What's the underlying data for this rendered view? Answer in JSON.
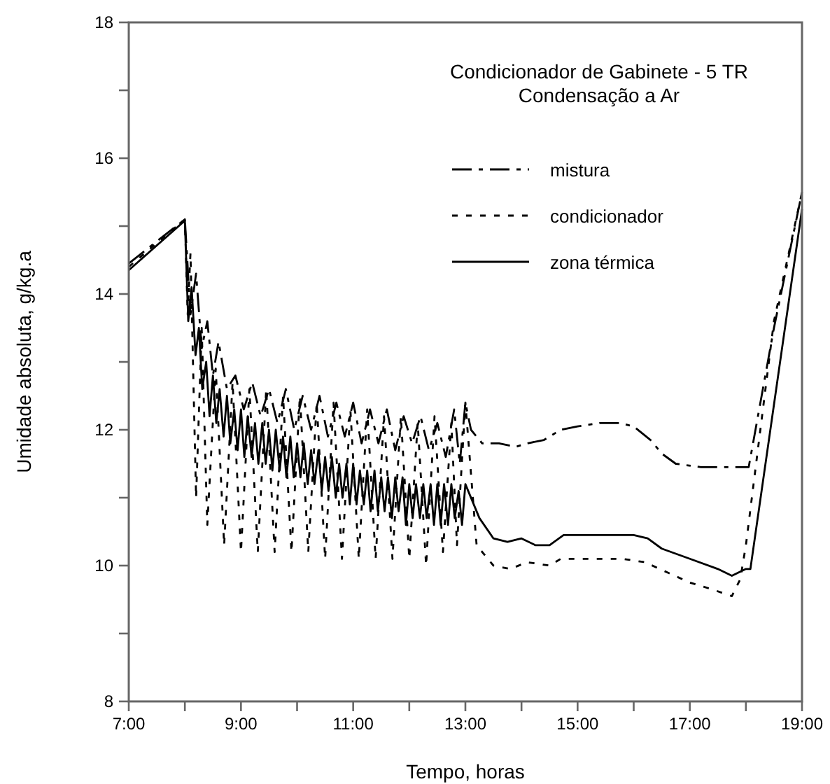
{
  "chart_data": {
    "type": "line",
    "title": "Condicionador de Gabinete - 5 TR",
    "subtitle": "Condensação a Ar",
    "xlabel": "Tempo, horas",
    "ylabel": "Umidade absoluta, g/kg.a",
    "xlim": [
      7,
      19
    ],
    "xticks": [
      {
        "value": 7,
        "label": "7:00"
      },
      {
        "value": 8,
        "label": null
      },
      {
        "value": 9,
        "label": "9:00"
      },
      {
        "value": 10,
        "label": null
      },
      {
        "value": 11,
        "label": "11:00"
      },
      {
        "value": 12,
        "label": null
      },
      {
        "value": 13,
        "label": "13:00"
      },
      {
        "value": 14,
        "label": null
      },
      {
        "value": 15,
        "label": "15:00"
      },
      {
        "value": 16,
        "label": null
      },
      {
        "value": 17,
        "label": "17:00"
      },
      {
        "value": 18,
        "label": null
      },
      {
        "value": 19,
        "label": "19:00"
      }
    ],
    "ylim": [
      8,
      18
    ],
    "yticks": [
      8,
      {
        "value": 9,
        "label": null
      },
      10,
      {
        "value": 11,
        "label": null
      },
      12,
      {
        "value": 13,
        "label": null
      },
      14,
      {
        "value": 15,
        "label": null
      },
      16,
      {
        "value": 17,
        "label": null
      },
      18
    ],
    "grid": false,
    "legend": "top right",
    "series": [
      {
        "name": "mistura",
        "color": "#000000",
        "line_style": "dashed",
        "x": [
          7,
          8,
          8.1,
          8.2,
          8.3,
          8.4,
          8.5,
          8.6,
          8.75,
          8.9,
          9.05,
          9.2,
          9.35,
          9.5,
          9.65,
          9.8,
          9.95,
          10.1,
          10.25,
          10.4,
          10.55,
          10.7,
          10.85,
          11,
          11.15,
          11.3,
          11.45,
          11.6,
          11.75,
          11.9,
          12.05,
          12.2,
          12.35,
          12.5,
          12.65,
          12.8,
          12.9,
          13,
          13.1,
          13.3,
          13.6,
          13.9,
          14.1,
          14.4,
          14.7,
          15,
          15.4,
          15.75,
          16,
          16.3,
          16.5,
          16.75,
          17.2,
          17.8,
          18.05,
          18.5,
          19
        ],
        "values": [
          14.45,
          15.1,
          13.7,
          14.3,
          13.2,
          13.6,
          12.8,
          13.3,
          12.6,
          12.8,
          12.3,
          12.7,
          12.2,
          12.6,
          12.1,
          12.6,
          12,
          12.5,
          12,
          12.5,
          11.9,
          12.4,
          11.9,
          12.4,
          11.8,
          12.3,
          11.8,
          12.3,
          11.7,
          12.2,
          11.8,
          12.2,
          11.7,
          12.1,
          11.6,
          12.3,
          11.5,
          12.4,
          12,
          11.8,
          11.8,
          11.75,
          11.8,
          11.85,
          12,
          12.05,
          12.1,
          12.1,
          12.05,
          11.85,
          11.65,
          11.5,
          11.45,
          11.45,
          11.45,
          13.5,
          15.5
        ]
      },
      {
        "name": "condicionador",
        "color": "#000000",
        "line_style": "dotted",
        "x": [
          7,
          8,
          8.05,
          8.1,
          8.2,
          8.3,
          8.4,
          8.55,
          8.7,
          8.85,
          9,
          9.15,
          9.3,
          9.45,
          9.6,
          9.75,
          9.9,
          10.05,
          10.2,
          10.35,
          10.5,
          10.65,
          10.8,
          10.95,
          11.1,
          11.25,
          11.4,
          11.55,
          11.7,
          11.85,
          12,
          12.15,
          12.3,
          12.45,
          12.6,
          12.75,
          12.85,
          13,
          13.2,
          13.5,
          13.8,
          14.1,
          14.5,
          14.7,
          15.2,
          15.8,
          16.2,
          16.6,
          17,
          17.4,
          17.75,
          17.9,
          18,
          18.5,
          19
        ],
        "values": [
          14.4,
          15.1,
          13.7,
          14.6,
          11,
          13.5,
          10.6,
          12.9,
          10.3,
          12.7,
          10.2,
          12.6,
          10.2,
          12.6,
          10.2,
          12.5,
          10.2,
          12.5,
          10.2,
          12.4,
          10.1,
          12.4,
          10.1,
          12.3,
          10.1,
          12.3,
          10.1,
          12.2,
          10.1,
          12.2,
          10.1,
          12.1,
          10,
          12.2,
          10.2,
          12.1,
          10.3,
          12.4,
          10.3,
          10,
          9.95,
          10.05,
          10,
          10.1,
          10.1,
          10.1,
          10.05,
          9.9,
          9.75,
          9.65,
          9.55,
          9.8,
          10.3,
          13.6,
          15.5
        ]
      },
      {
        "name": "zona térmica",
        "color": "#000000",
        "line_style": "solid",
        "x": [
          7,
          8,
          8.06,
          8.12,
          8.19,
          8.25,
          8.31,
          8.38,
          8.44,
          8.5,
          8.56,
          8.62,
          8.69,
          8.75,
          8.81,
          8.88,
          8.94,
          9,
          9.06,
          9.12,
          9.19,
          9.25,
          9.31,
          9.38,
          9.44,
          9.5,
          9.56,
          9.62,
          9.69,
          9.75,
          9.81,
          9.88,
          9.94,
          10,
          10.06,
          10.12,
          10.19,
          10.25,
          10.31,
          10.38,
          10.44,
          10.5,
          10.56,
          10.62,
          10.69,
          10.75,
          10.81,
          10.88,
          10.94,
          11,
          11.06,
          11.12,
          11.19,
          11.25,
          11.31,
          11.38,
          11.44,
          11.5,
          11.56,
          11.62,
          11.69,
          11.75,
          11.81,
          11.88,
          11.94,
          12,
          12.06,
          12.12,
          12.19,
          12.25,
          12.31,
          12.38,
          12.44,
          12.5,
          12.56,
          12.62,
          12.69,
          12.75,
          12.81,
          12.88,
          12.94,
          13,
          13.25,
          13.5,
          13.75,
          14,
          14.25,
          14.5,
          14.75,
          15,
          15.5,
          16,
          16.25,
          16.5,
          17,
          17.5,
          17.75,
          18,
          18.08,
          19
        ],
        "values": [
          14.35,
          15.08,
          13.6,
          14.1,
          13.1,
          13.5,
          12.6,
          13,
          12.2,
          12.8,
          12.1,
          12.6,
          11.9,
          12.5,
          11.8,
          12.3,
          11.7,
          12.3,
          11.6,
          12.2,
          11.6,
          12.1,
          11.5,
          12.1,
          11.5,
          12,
          11.4,
          12,
          11.4,
          11.9,
          11.3,
          11.9,
          11.3,
          11.8,
          11.3,
          11.8,
          11.2,
          11.7,
          11.2,
          11.7,
          11.1,
          11.6,
          11.1,
          11.6,
          11,
          11.5,
          11,
          11.5,
          10.9,
          11.5,
          10.9,
          11.4,
          10.9,
          11.4,
          10.8,
          11.4,
          10.8,
          11.3,
          10.8,
          11.3,
          10.7,
          11.3,
          10.8,
          11.3,
          10.6,
          11.2,
          10.7,
          11.2,
          10.7,
          11.2,
          10.7,
          11.2,
          10.6,
          11.2,
          10.6,
          11.2,
          10.6,
          11.2,
          10.7,
          11.1,
          10.6,
          11.2,
          10.7,
          10.4,
          10.35,
          10.4,
          10.3,
          10.3,
          10.45,
          10.45,
          10.45,
          10.45,
          10.4,
          10.25,
          10.1,
          9.95,
          9.85,
          9.95,
          9.95,
          15.25
        ]
      }
    ]
  }
}
